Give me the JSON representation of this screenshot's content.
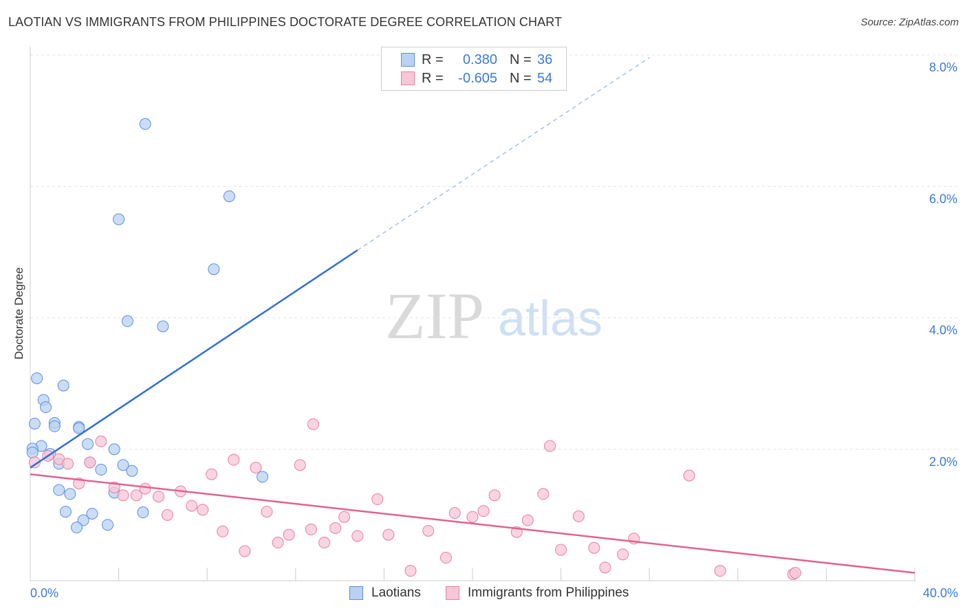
{
  "chart_data": {
    "type": "scatter",
    "title": "LAOTIAN VS IMMIGRANTS FROM PHILIPPINES DOCTORATE DEGREE CORRELATION CHART",
    "source": "Source: ZipAtlas.com",
    "xlabel": "",
    "ylabel": "Doctorate Degree",
    "xlim": [
      0,
      40
    ],
    "ylim": [
      0,
      8.0
    ],
    "x_tick_labels": [
      "0.0%",
      "40.0%"
    ],
    "y_ticks": [
      2,
      4,
      6,
      8
    ],
    "y_tick_labels": [
      "2.0%",
      "4.0%",
      "6.0%",
      "8.0%"
    ],
    "grid": true,
    "watermark": {
      "zip": "ZIP",
      "atlas": "atlas"
    },
    "series": [
      {
        "name": "Laotians",
        "color": "#5b8fe0",
        "fill": "#b9d1f2",
        "R": "0.380",
        "N": "36",
        "trend": {
          "x0": 0,
          "y0": 1.72,
          "x1": 14.8,
          "y1": 5.03,
          "dash_to_x": 28,
          "dash_to_y": 7.96
        },
        "points": [
          [
            5.2,
            6.95
          ],
          [
            4.0,
            5.5
          ],
          [
            9.0,
            5.85
          ],
          [
            8.3,
            4.74
          ],
          [
            4.4,
            3.95
          ],
          [
            6.0,
            3.87
          ],
          [
            0.3,
            3.08
          ],
          [
            1.5,
            2.97
          ],
          [
            0.6,
            2.75
          ],
          [
            0.7,
            2.64
          ],
          [
            1.1,
            2.4
          ],
          [
            1.1,
            2.35
          ],
          [
            0.2,
            2.39
          ],
          [
            2.2,
            2.34
          ],
          [
            2.2,
            2.32
          ],
          [
            0.5,
            2.05
          ],
          [
            0.1,
            2.01
          ],
          [
            3.8,
            2.0
          ],
          [
            2.6,
            2.08
          ],
          [
            0.9,
            1.93
          ],
          [
            2.7,
            1.8
          ],
          [
            4.2,
            1.76
          ],
          [
            1.3,
            1.78
          ],
          [
            3.2,
            1.69
          ],
          [
            4.6,
            1.67
          ],
          [
            10.5,
            1.58
          ],
          [
            1.3,
            1.38
          ],
          [
            1.8,
            1.32
          ],
          [
            3.8,
            1.34
          ],
          [
            1.6,
            1.05
          ],
          [
            2.8,
            1.02
          ],
          [
            5.1,
            1.04
          ],
          [
            2.4,
            0.92
          ],
          [
            2.1,
            0.81
          ],
          [
            3.5,
            0.85
          ],
          [
            0.1,
            1.95
          ]
        ]
      },
      {
        "name": "Immigrants from Philippines",
        "color": "#e57fa3",
        "fill": "#f8c6d6",
        "R": "-0.605",
        "N": "54",
        "trend": {
          "x0": 0,
          "y0": 1.62,
          "x1": 40,
          "y1": 0.12
        },
        "points": [
          [
            0.2,
            1.8
          ],
          [
            0.8,
            1.9
          ],
          [
            1.3,
            1.85
          ],
          [
            2.7,
            1.8
          ],
          [
            1.7,
            1.78
          ],
          [
            3.2,
            2.12
          ],
          [
            2.2,
            1.48
          ],
          [
            3.8,
            1.42
          ],
          [
            4.2,
            1.3
          ],
          [
            4.8,
            1.3
          ],
          [
            5.2,
            1.4
          ],
          [
            5.8,
            1.28
          ],
          [
            6.2,
            1.0
          ],
          [
            6.8,
            1.36
          ],
          [
            7.3,
            1.14
          ],
          [
            7.8,
            1.08
          ],
          [
            8.2,
            1.62
          ],
          [
            8.7,
            0.75
          ],
          [
            9.2,
            1.84
          ],
          [
            9.7,
            0.45
          ],
          [
            10.2,
            1.72
          ],
          [
            10.7,
            1.05
          ],
          [
            11.2,
            0.58
          ],
          [
            11.7,
            0.7
          ],
          [
            12.2,
            1.76
          ],
          [
            12.7,
            0.78
          ],
          [
            12.8,
            2.38
          ],
          [
            13.3,
            0.58
          ],
          [
            13.8,
            0.8
          ],
          [
            14.2,
            0.97
          ],
          [
            14.8,
            0.68
          ],
          [
            15.7,
            1.24
          ],
          [
            16.2,
            0.7
          ],
          [
            17.2,
            0.15
          ],
          [
            18.0,
            0.76
          ],
          [
            18.8,
            0.35
          ],
          [
            19.2,
            1.03
          ],
          [
            20.0,
            0.97
          ],
          [
            20.5,
            1.06
          ],
          [
            21.0,
            1.3
          ],
          [
            22.0,
            0.74
          ],
          [
            22.5,
            0.92
          ],
          [
            23.2,
            1.32
          ],
          [
            23.5,
            2.05
          ],
          [
            24.0,
            0.47
          ],
          [
            24.8,
            0.98
          ],
          [
            25.5,
            0.5
          ],
          [
            26.0,
            0.2
          ],
          [
            26.8,
            0.4
          ],
          [
            27.3,
            0.64
          ],
          [
            29.8,
            1.6
          ],
          [
            31.2,
            0.15
          ],
          [
            34.5,
            0.1
          ],
          [
            34.6,
            0.12
          ]
        ]
      }
    ]
  }
}
